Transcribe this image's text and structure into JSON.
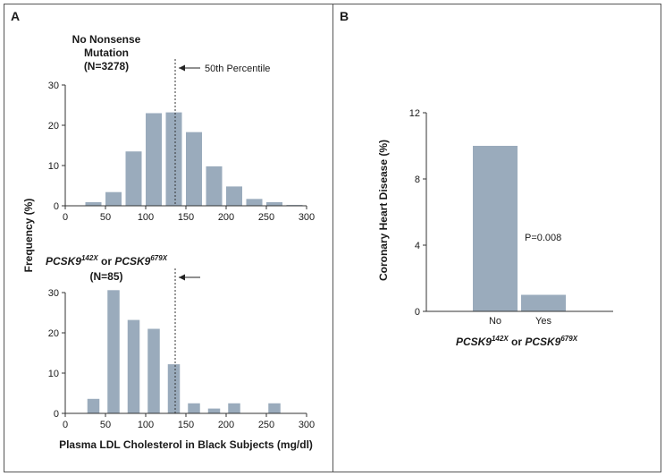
{
  "panels": {
    "a_letter": "A",
    "b_letter": "B"
  },
  "panel_a": {
    "xlabel": "Plasma LDL Cholesterol in Black Subjects (mg/dl)",
    "ylabel": "Frequency (%)",
    "top_title_line1": "No Nonsense",
    "top_title_line2": "Mutation",
    "top_title_line3": "(N=3278)",
    "bottom_title_gene1": "PCSK9",
    "bottom_title_sup1": "142X",
    "bottom_title_or": " or ",
    "bottom_title_gene2": "PCSK9",
    "bottom_title_sup2": "679X",
    "bottom_title_n": "(N=85)",
    "percentile_label": "50th Percentile"
  },
  "panel_b": {
    "ylabel": "Coronary Heart Disease (%)",
    "xlabel_gene1": "PCSK9",
    "xlabel_sup1": "142X",
    "xlabel_or": " or ",
    "xlabel_gene2": "PCSK9",
    "xlabel_sup2": "679X",
    "p_value": "P=0.008"
  },
  "colors": {
    "bar": "#9aabbc",
    "axis": "#333333"
  },
  "chart_data": [
    {
      "type": "bar",
      "panel": "A-top",
      "xlabel": "Plasma LDL Cholesterol in Black Subjects (mg/dl)",
      "ylabel": "Frequency (%)",
      "bin_centers": [
        10,
        35,
        60,
        85,
        110,
        135,
        160,
        185,
        210,
        235,
        260,
        285
      ],
      "values": [
        0.1,
        0.9,
        3.4,
        13.5,
        23.0,
        23.2,
        18.3,
        9.8,
        4.8,
        1.7,
        0.9,
        0.2
      ],
      "bin_width": 20,
      "xlim": [
        0,
        300
      ],
      "ylim": [
        0,
        30
      ],
      "xticks": [
        0,
        50,
        100,
        150,
        200,
        250,
        300
      ],
      "yticks": [
        0,
        10,
        20,
        30
      ],
      "median_line_x": 135
    },
    {
      "type": "bar",
      "panel": "A-bottom",
      "xlabel": "Plasma LDL Cholesterol in Black Subjects (mg/dl)",
      "ylabel": "Frequency (%)",
      "bin_centers": [
        35,
        60,
        85,
        110,
        135,
        160,
        185,
        210,
        260
      ],
      "values": [
        3.6,
        30.6,
        23.2,
        21.0,
        12.2,
        2.5,
        1.2,
        2.5,
        2.5
      ],
      "bin_width": 15,
      "xlim": [
        0,
        300
      ],
      "ylim": [
        0,
        30
      ],
      "xticks": [
        0,
        50,
        100,
        150,
        200,
        250,
        300
      ],
      "yticks": [
        0,
        10,
        20,
        30
      ],
      "median_line_x": 135
    },
    {
      "type": "bar",
      "panel": "B",
      "ylabel": "Coronary Heart Disease (%)",
      "categories": [
        "No",
        "Yes"
      ],
      "values": [
        10.0,
        1.0
      ],
      "ylim": [
        0,
        12
      ],
      "yticks": [
        0,
        4,
        8,
        12
      ],
      "annotation": "P=0.008"
    }
  ]
}
